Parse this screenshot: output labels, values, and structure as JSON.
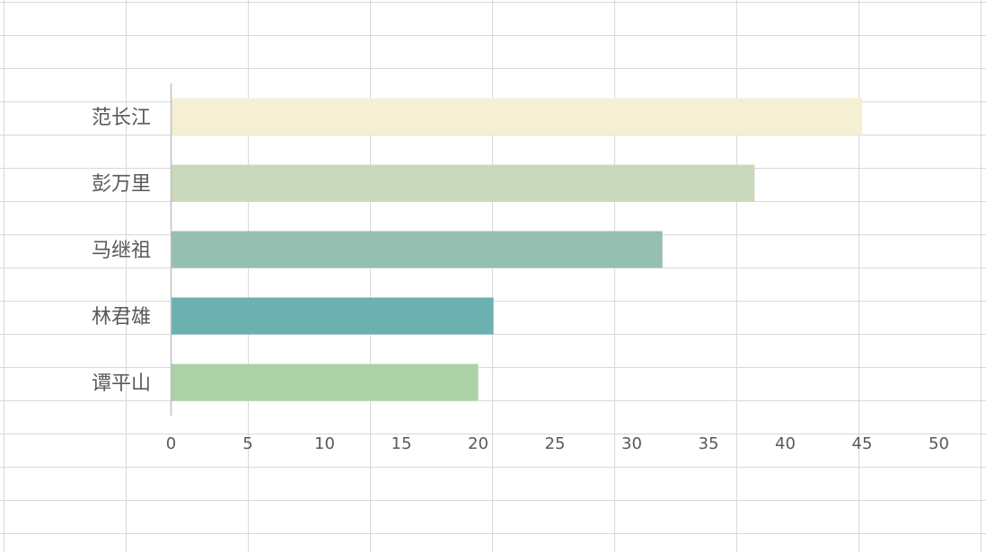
{
  "chart_data": {
    "type": "bar",
    "orientation": "horizontal",
    "categories": [
      "范长江",
      "彭万里",
      "马继祖",
      "林君雄",
      "谭平山"
    ],
    "values": [
      45,
      38,
      32,
      21,
      20
    ],
    "colors": [
      "#f5efd3",
      "#c9d8bb",
      "#95bfb0",
      "#6cb0b0",
      "#abd1a7"
    ],
    "xlim": [
      0,
      50
    ],
    "x_ticks": [
      0,
      5,
      10,
      15,
      20,
      25,
      30,
      35,
      40,
      45,
      50
    ],
    "title": "",
    "xlabel": "",
    "ylabel": "",
    "grid": true,
    "legend": "none"
  },
  "theme": {
    "background": "#ffffff",
    "gridline_color": "#d9d9d9",
    "axis_color": "#bfbfbf",
    "label_color": "#595959"
  }
}
